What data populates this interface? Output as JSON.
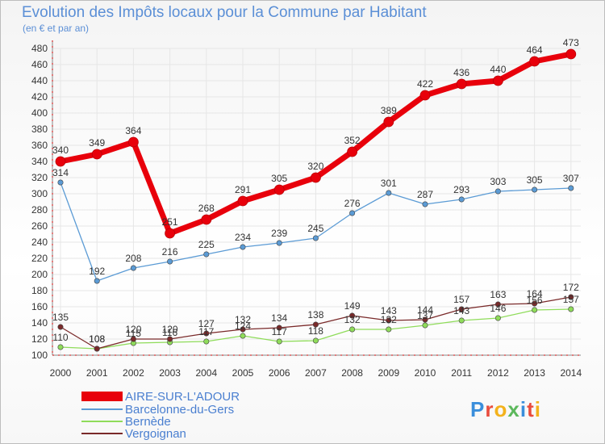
{
  "chart_data": {
    "type": "line",
    "title": "Evolution des Impôts locaux pour la Commune par Habitant",
    "subtitle": "(en € et par an)",
    "xlabel": "",
    "ylabel": "",
    "ylim": [
      100,
      480
    ],
    "ytick_step": 20,
    "grid": true,
    "legend_position": "bottom-left",
    "x": [
      2000,
      2001,
      2002,
      2003,
      2004,
      2005,
      2006,
      2007,
      2008,
      2009,
      2010,
      2011,
      2012,
      2013,
      2014
    ],
    "series": [
      {
        "name": "AIRE-SUR-L'ADOUR",
        "color": "#e8000b",
        "values": [
          340,
          349,
          364,
          251,
          268,
          291,
          305,
          320,
          352,
          389,
          422,
          436,
          440,
          464,
          473
        ]
      },
      {
        "name": "Barcelonne-du-Gers",
        "color": "#5b9bd5",
        "values": [
          314,
          192,
          208,
          216,
          225,
          234,
          239,
          245,
          276,
          301,
          287,
          293,
          303,
          305,
          307
        ]
      },
      {
        "name": "Bernède",
        "color": "#8fdc5a",
        "values": [
          110,
          108,
          115,
          116,
          117,
          124,
          117,
          118,
          132,
          132,
          137,
          143,
          146,
          156,
          157
        ]
      },
      {
        "name": "Vergoignan",
        "color": "#7a2a2a",
        "values": [
          135,
          108,
          120,
          120,
          127,
          132,
          134,
          138,
          149,
          143,
          144,
          157,
          163,
          164,
          172
        ]
      }
    ]
  },
  "logo": {
    "text": "Proxiti",
    "letters": [
      "P",
      "r",
      "o",
      "x",
      "i",
      "t",
      "i"
    ],
    "colors": [
      "#3a8edb",
      "#e94c3d",
      "#f3b21c",
      "#5cb85c",
      "#3a8edb",
      "#e94c3d",
      "#f3b21c"
    ]
  }
}
